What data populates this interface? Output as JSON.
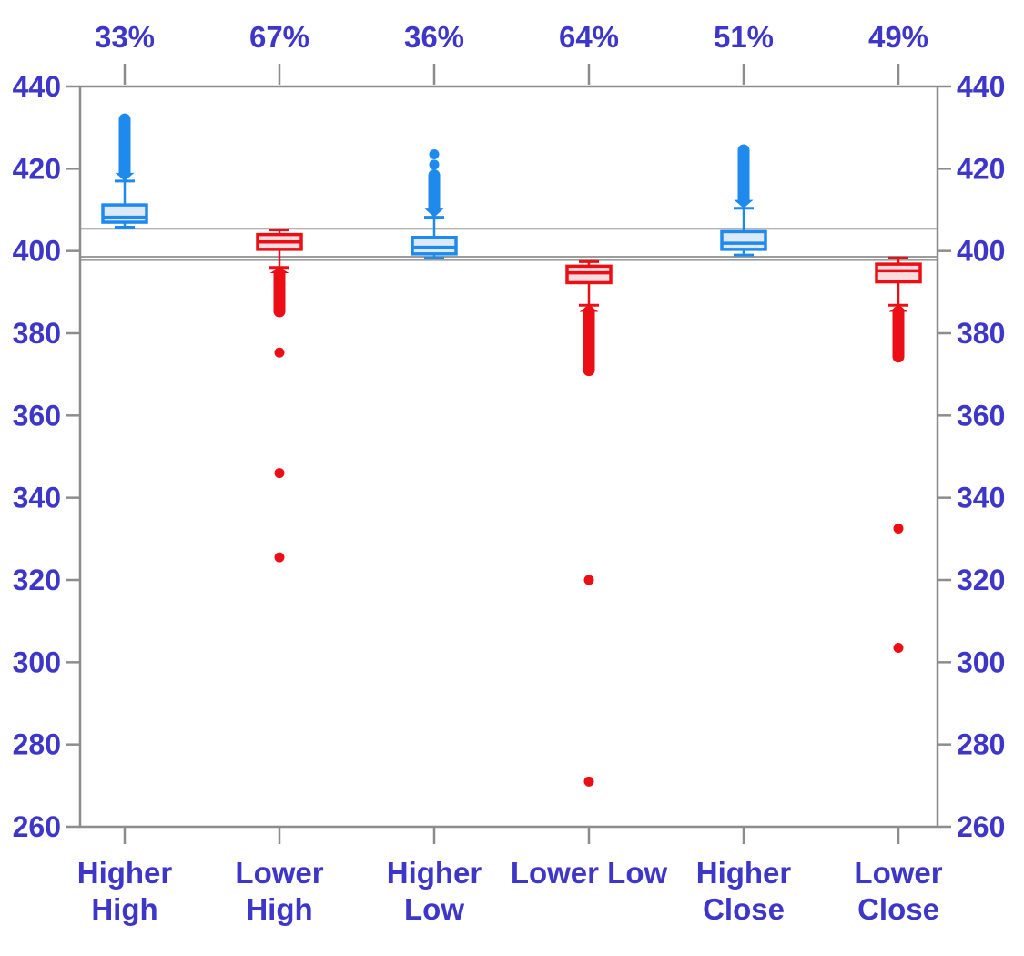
{
  "figure": {
    "background": "#ffffff",
    "description": "Box plot of price levels for six breakout categories with percentage labels on top axis"
  },
  "style": {
    "axis_text_color": "#3D36C9",
    "frame_color": "#8C8C8C",
    "tick_color": "#8C8C8C",
    "reference_line_color": "#9C9C9C",
    "blue_stroke": "#1E8AEE",
    "blue_fill": "#DBE9F8",
    "red_stroke": "#EC0E15",
    "red_fill": "#F9DCE0"
  },
  "chart_data": {
    "type": "box",
    "title": "",
    "xlabel": "",
    "ylabel": "",
    "y_axis": {
      "min": 260,
      "max": 440,
      "tick_step": 20,
      "tick_labels": [
        "260",
        "280",
        "300",
        "320",
        "340",
        "360",
        "380",
        "400",
        "420",
        "440"
      ],
      "shown_on": [
        "left",
        "right"
      ]
    },
    "top_axis_labels": [
      "33%",
      "67%",
      "36%",
      "64%",
      "51%",
      "49%"
    ],
    "categories": [
      "Higher High",
      "Lower High",
      "Higher Low",
      "Lower Low",
      "Higher Close",
      "Lower Close"
    ],
    "category_label_lines": [
      [
        "Higher",
        "High"
      ],
      [
        "Lower",
        "High"
      ],
      [
        "Higher",
        "Low"
      ],
      [
        "Lower Low"
      ],
      [
        "Higher",
        "Close"
      ],
      [
        "Lower",
        "Close"
      ]
    ],
    "reference_lines": [
      {
        "value": 405.4
      },
      {
        "value": 398.6
      },
      {
        "value": 397.8
      }
    ],
    "series": [
      {
        "name": "Higher High",
        "top_label": "33%",
        "color_key": "blue",
        "whisker_low": 405.8,
        "q1": 407.0,
        "median": 408.2,
        "q3": 411.2,
        "whisker_high": 417.0,
        "outlier_band": {
          "from": 419.0,
          "to": 432.0
        },
        "outlier_points": []
      },
      {
        "name": "Lower High",
        "top_label": "67%",
        "color_key": "red",
        "whisker_low": 396.0,
        "q1": 400.4,
        "median": 402.2,
        "q3": 404.0,
        "whisker_high": 405.1,
        "outlier_band": {
          "from": 394.6,
          "to": 385.3
        },
        "outlier_points": [
          375.3,
          346.0,
          325.5
        ]
      },
      {
        "name": "Higher Low",
        "top_label": "36%",
        "color_key": "blue",
        "whisker_low": 398.3,
        "q1": 399.3,
        "median": 400.9,
        "q3": 403.3,
        "whisker_high": 408.2,
        "outlier_band": {
          "from": 410.3,
          "to": 418.4
        },
        "outlier_points": [
          421.0,
          423.5
        ]
      },
      {
        "name": "Lower Low",
        "top_label": "64%",
        "color_key": "red",
        "whisker_low": 386.8,
        "q1": 392.3,
        "median": 394.7,
        "q3": 396.3,
        "whisker_high": 397.4,
        "outlier_band": {
          "from": 385.2,
          "to": 371.0
        },
        "outlier_points": [
          320.0,
          271.0
        ]
      },
      {
        "name": "Higher Close",
        "top_label": "51%",
        "color_key": "blue",
        "whisker_low": 399.0,
        "q1": 400.4,
        "median": 401.9,
        "q3": 404.7,
        "whisker_high": 410.4,
        "outlier_band": {
          "from": 412.4,
          "to": 424.5
        },
        "outlier_points": []
      },
      {
        "name": "Lower Close",
        "top_label": "49%",
        "color_key": "red",
        "whisker_low": 386.8,
        "q1": 392.5,
        "median": 395.2,
        "q3": 396.8,
        "whisker_high": 398.3,
        "outlier_band": {
          "from": 385.2,
          "to": 374.3
        },
        "outlier_points": [
          332.5,
          303.5
        ]
      }
    ],
    "legend": {
      "visible": false
    }
  }
}
